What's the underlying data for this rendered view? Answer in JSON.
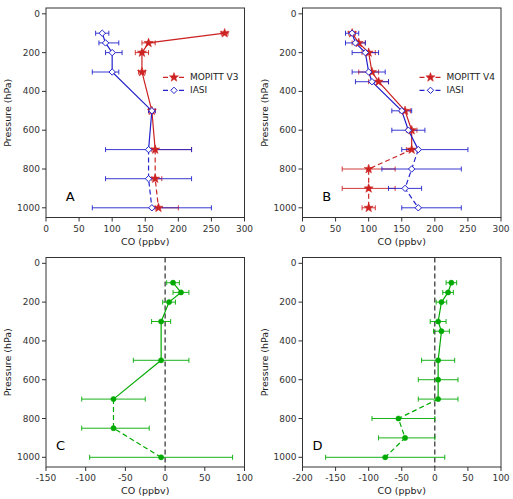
{
  "chart_data": [
    {
      "type": "line",
      "xlabel": "CO (ppbv)",
      "ylabel": "Pressure (hPa)",
      "xlim": [
        0,
        300
      ],
      "xticks": [
        0,
        50,
        100,
        150,
        200,
        250,
        300
      ],
      "ylim": [
        1050,
        -30
      ],
      "yticks": [
        0,
        200,
        400,
        600,
        800,
        1000
      ],
      "grid": false,
      "legend": "right",
      "annotations": [
        "A"
      ],
      "series": [
        {
          "name": "MOPITT V3",
          "color": "#cc2222",
          "marker": "star",
          "line_style": "solid",
          "x": [
            270,
            155,
            145,
            145,
            160
          ],
          "y": [
            100,
            150,
            200,
            300,
            500
          ],
          "xerr_left": [
            5,
            10,
            10,
            5,
            5
          ],
          "xerr_right": [
            5,
            10,
            10,
            5,
            5
          ]
        },
        {
          "color": "#cc2222",
          "marker": "star",
          "line_style": "dashed",
          "x": [
            165,
            165,
            170
          ],
          "y": [
            700,
            850,
            1000
          ],
          "xerr_left": [
            5,
            5,
            5
          ],
          "xerr_right": [
            55,
            10,
            30
          ]
        },
        {
          "name": "IASI",
          "color": "#2222cc",
          "marker": "diamond",
          "line_style": "solid",
          "x": [
            85,
            90,
            100,
            100,
            160
          ],
          "y": [
            100,
            150,
            200,
            300,
            500
          ],
          "xerr_left": [
            10,
            10,
            10,
            30,
            5
          ],
          "xerr_right": [
            10,
            20,
            15,
            10,
            5
          ]
        },
        {
          "color": "#2222cc",
          "marker": "diamond",
          "line_style": "dashed",
          "x": [
            155,
            155,
            160
          ],
          "y": [
            700,
            850,
            1000
          ],
          "xerr_left": [
            65,
            65,
            90
          ],
          "xerr_right": [
            65,
            65,
            90
          ]
        }
      ]
    },
    {
      "type": "line",
      "xlabel": "CO (ppbv)",
      "ylabel": "Pressure (hPa)",
      "xlim": [
        0,
        300
      ],
      "xticks": [
        0,
        50,
        100,
        150,
        200,
        250,
        300
      ],
      "ylim": [
        1050,
        -30
      ],
      "yticks": [
        0,
        200,
        400,
        600,
        800,
        1000
      ],
      "grid": false,
      "legend": "right",
      "annotations": [
        "B"
      ],
      "series": [
        {
          "name": "MOPITT V4",
          "color": "#cc2222",
          "marker": "star",
          "line_style": "solid",
          "x": [
            75,
            85,
            100,
            105,
            115,
            155,
            165
          ],
          "y": [
            100,
            150,
            200,
            300,
            350,
            500,
            600
          ],
          "xerr_left": [
            5,
            10,
            10,
            20,
            15,
            8,
            8
          ],
          "xerr_right": [
            5,
            10,
            10,
            10,
            15,
            8,
            8
          ]
        },
        {
          "color": "#cc2222",
          "marker": "star",
          "line_style": "dashed",
          "x": [
            165,
            100,
            100,
            100
          ],
          "y": [
            700,
            800,
            900,
            1000
          ],
          "xerr_left": [
            8,
            40,
            40,
            10
          ],
          "xerr_right": [
            8,
            40,
            40,
            10
          ]
        },
        {
          "name": "IASI",
          "color": "#2222cc",
          "marker": "diamond",
          "line_style": "solid",
          "x": [
            75,
            80,
            95,
            100,
            105,
            150,
            160
          ],
          "y": [
            100,
            150,
            200,
            300,
            350,
            500,
            600
          ],
          "xerr_left": [
            10,
            15,
            20,
            25,
            25,
            15,
            25
          ],
          "xerr_right": [
            10,
            15,
            20,
            25,
            25,
            15,
            25
          ]
        },
        {
          "color": "#2222cc",
          "marker": "diamond",
          "line_style": "dashed",
          "x": [
            175,
            165,
            155,
            175
          ],
          "y": [
            700,
            800,
            900,
            1000
          ],
          "xerr_left": [
            25,
            45,
            25,
            25
          ],
          "xerr_right": [
            75,
            75,
            25,
            65
          ]
        }
      ]
    },
    {
      "type": "line",
      "xlabel": "CO (ppbv)",
      "ylabel": "Pressure (hPa)",
      "xlim": [
        -150,
        100
      ],
      "xticks": [
        -150,
        -100,
        -50,
        0,
        50,
        100
      ],
      "ylim": [
        1050,
        -30
      ],
      "yticks": [
        0,
        200,
        400,
        600,
        800,
        1000
      ],
      "grid": false,
      "annotations": [
        "C"
      ],
      "reference_x": [
        0
      ],
      "series": [
        {
          "color": "#00aa00",
          "marker": "circle",
          "line_style": "solid",
          "x": [
            10,
            20,
            5,
            -5,
            -5
          ],
          "y": [
            100,
            150,
            200,
            300,
            500
          ],
          "xerr_left": [
            8,
            10,
            8,
            12,
            35
          ],
          "xerr_right": [
            8,
            10,
            8,
            12,
            35
          ]
        },
        {
          "color": "#00aa00",
          "marker": "circle",
          "line_style": "dashed",
          "x": [
            -65,
            -65,
            -5
          ],
          "y": [
            700,
            850,
            1000
          ],
          "xerr_left": [
            40,
            40,
            90
          ],
          "xerr_right": [
            40,
            45,
            90
          ]
        }
      ]
    },
    {
      "type": "line",
      "xlabel": "CO (ppbv)",
      "ylabel": "Pressure (hPa)",
      "xlim": [
        -200,
        100
      ],
      "xticks": [
        -200,
        -150,
        -100,
        -50,
        0,
        50,
        100
      ],
      "ylim": [
        1050,
        -30
      ],
      "yticks": [
        0,
        200,
        400,
        600,
        800,
        1000
      ],
      "grid": false,
      "annotations": [
        "D"
      ],
      "reference_x": [
        0
      ],
      "series": [
        {
          "color": "#00aa00",
          "marker": "circle",
          "line_style": "solid",
          "x": [
            25,
            20,
            10,
            5,
            10,
            5,
            5
          ],
          "y": [
            100,
            150,
            200,
            300,
            350,
            500,
            600
          ],
          "xerr_left": [
            8,
            8,
            8,
            12,
            12,
            25,
            30
          ],
          "xerr_right": [
            8,
            8,
            8,
            12,
            12,
            25,
            30
          ]
        },
        {
          "color": "#00aa00",
          "marker": "circle",
          "line_style": "dashed",
          "x": [
            5,
            -55,
            -45,
            -75
          ],
          "y": [
            700,
            800,
            900,
            1000
          ],
          "xerr_left": [
            30,
            40,
            40,
            90
          ],
          "xerr_right": [
            30,
            55,
            45,
            90
          ]
        }
      ]
    }
  ]
}
